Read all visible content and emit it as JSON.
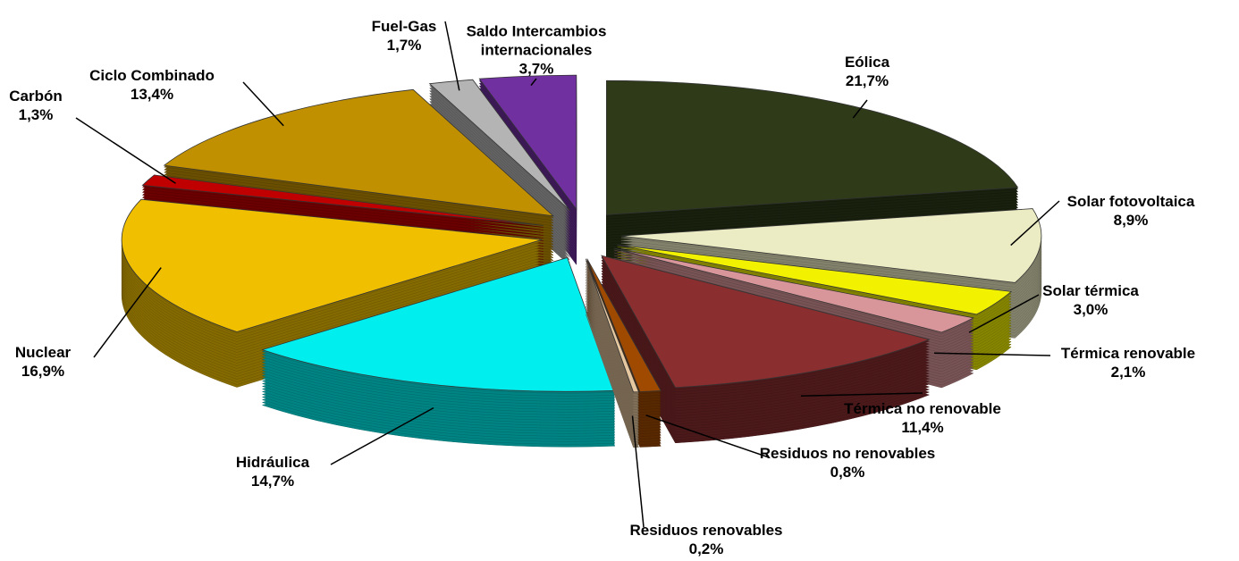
{
  "chart_data": {
    "type": "pie",
    "categories": [
      "Eólica",
      "Solar fotovoltaica",
      "Solar térmica",
      "Térmica renovable",
      "Térmica no renovable",
      "Residuos no renovables",
      "Residuos renovables",
      "Hidráulica",
      "Nuclear",
      "Carbón",
      "Ciclo Combinado",
      "Fuel-Gas",
      "Saldo Intercambios internacionales"
    ],
    "values": [
      21.7,
      8.9,
      3.0,
      2.1,
      11.4,
      0.8,
      0.2,
      14.7,
      16.9,
      1.3,
      13.4,
      1.7,
      3.7
    ],
    "value_labels": [
      "21,7%",
      "8,9%",
      "3,0%",
      "2,1%",
      "11,4%",
      "0,8%",
      "0,2%",
      "14,7%",
      "16,9%",
      "1,3%",
      "13,4%",
      "1,7%",
      "3,7%"
    ],
    "colors": [
      "#2e3a18",
      "#ececc4",
      "#f2f200",
      "#d8969a",
      "#8a2e30",
      "#a04a00",
      "#e6c8a0",
      "#00eeee",
      "#f0c000",
      "#c00000",
      "#c09000",
      "#b4b4b4",
      "#7030a0"
    ]
  }
}
